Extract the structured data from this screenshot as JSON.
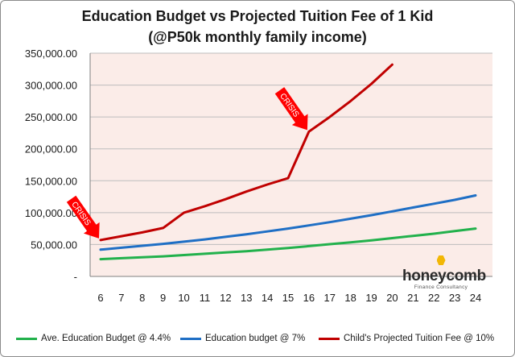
{
  "chart_data": {
    "type": "line",
    "title": "Education Budget vs Projected Tuition Fee of 1 Kid",
    "subtitle": "(@P50k monthly family income)",
    "xlabel": "",
    "ylabel": "",
    "x": [
      6,
      7,
      8,
      9,
      10,
      11,
      12,
      13,
      14,
      15,
      16,
      17,
      18,
      19,
      20,
      21,
      22,
      23,
      24
    ],
    "ylim": [
      0,
      350000
    ],
    "y_ticks": [
      "-",
      "50,000.00",
      "100,000.00",
      "150,000.00",
      "200,000.00",
      "250,000.00",
      "300,000.00",
      "350,000.00"
    ],
    "grid": true,
    "legend_position": "bottom",
    "series": [
      {
        "name": "Ave. Education Budget @ 4.4%",
        "color": "#22b14c",
        "values": [
          27000,
          28500,
          30000,
          31500,
          33500,
          35500,
          37500,
          39500,
          42000,
          44500,
          47500,
          50500,
          53500,
          56500,
          60000,
          63500,
          67000,
          71000,
          75000
        ]
      },
      {
        "name": "Education budget @ 7%",
        "color": "#1f6fc5",
        "values": [
          42000,
          45000,
          48000,
          51000,
          54500,
          58000,
          62000,
          66000,
          70500,
          75000,
          80000,
          85000,
          90500,
          96000,
          102000,
          108000,
          114000,
          120000,
          127000
        ]
      },
      {
        "name": "Child's Projected Tuition Fee @ 10%",
        "color": "#c00000",
        "values": [
          57000,
          63000,
          69000,
          76000,
          100000,
          110000,
          121000,
          133000,
          144000,
          154000,
          227000,
          250000,
          275000,
          302000,
          332000,
          null,
          null,
          null,
          null
        ]
      }
    ],
    "annotations": [
      {
        "text": "CRISIS",
        "x": 6,
        "y": 57000
      },
      {
        "text": "CRISIS",
        "x": 16,
        "y": 227000
      }
    ]
  },
  "watermark": {
    "word": "honeycomb",
    "tagline": "Finance Consultancy"
  },
  "colors": {
    "plot_background": "#fbece8",
    "gridline": "#bdbdbd",
    "arrow": "#ff0000"
  }
}
